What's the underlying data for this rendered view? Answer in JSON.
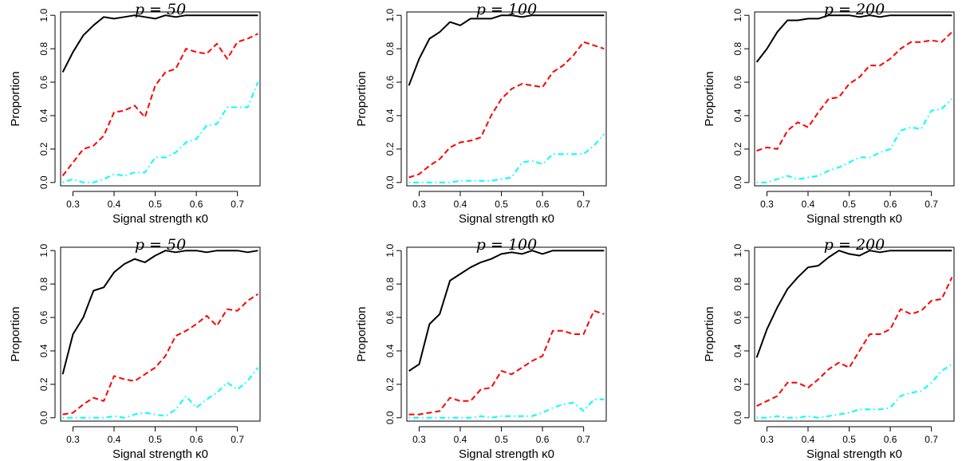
{
  "chart_data": [
    {
      "type": "line",
      "title": "p = 50",
      "xlabel": "Signal strength κ0",
      "ylabel": "Proportion",
      "x": [
        0.275,
        0.3,
        0.325,
        0.35,
        0.375,
        0.4,
        0.425,
        0.45,
        0.475,
        0.5,
        0.525,
        0.55,
        0.575,
        0.6,
        0.625,
        0.65,
        0.675,
        0.7,
        0.725,
        0.75
      ],
      "xlim": [
        0.27,
        0.755
      ],
      "ylim": [
        -0.02,
        1.02
      ],
      "xticks": [
        "0.3",
        "0.4",
        "0.5",
        "0.6",
        "0.7"
      ],
      "yticks": [
        "0.0",
        "0.2",
        "0.4",
        "0.6",
        "0.8",
        "1.0"
      ],
      "series": [
        {
          "color": "#000000",
          "dash": "solid",
          "values": [
            0.66,
            0.78,
            0.88,
            0.94,
            0.99,
            0.98,
            0.99,
            1.0,
            0.99,
            0.98,
            1.0,
            0.99,
            1.0,
            1.0,
            1.0,
            1.0,
            1.0,
            1.0,
            1.0,
            1.0
          ]
        },
        {
          "color": "#ff0000",
          "dash": "dashed",
          "values": [
            0.04,
            0.12,
            0.2,
            0.22,
            0.28,
            0.42,
            0.43,
            0.46,
            0.39,
            0.58,
            0.66,
            0.68,
            0.8,
            0.78,
            0.77,
            0.83,
            0.74,
            0.84,
            0.86,
            0.89
          ]
        },
        {
          "color": "#00ffff",
          "dash": "dotdash",
          "values": [
            0.0,
            0.02,
            0.0,
            0.0,
            0.02,
            0.05,
            0.04,
            0.06,
            0.06,
            0.15,
            0.15,
            0.18,
            0.24,
            0.26,
            0.34,
            0.35,
            0.45,
            0.45,
            0.45,
            0.6
          ]
        }
      ]
    },
    {
      "type": "line",
      "title": "p = 100",
      "xlabel": "Signal strength κ0",
      "ylabel": "Proportion",
      "x": [
        0.275,
        0.3,
        0.325,
        0.35,
        0.375,
        0.4,
        0.425,
        0.45,
        0.475,
        0.5,
        0.525,
        0.55,
        0.575,
        0.6,
        0.625,
        0.65,
        0.675,
        0.7,
        0.725,
        0.75
      ],
      "xlim": [
        0.27,
        0.755
      ],
      "ylim": [
        -0.02,
        1.02
      ],
      "xticks": [
        "0.3",
        "0.4",
        "0.5",
        "0.6",
        "0.7"
      ],
      "yticks": [
        "0.0",
        "0.2",
        "0.4",
        "0.6",
        "0.8",
        "1.0"
      ],
      "series": [
        {
          "color": "#000000",
          "dash": "solid",
          "values": [
            0.58,
            0.74,
            0.86,
            0.9,
            0.96,
            0.94,
            0.98,
            0.98,
            0.98,
            1.0,
            1.0,
            0.99,
            1.0,
            1.0,
            1.0,
            1.0,
            1.0,
            1.0,
            1.0,
            1.0
          ]
        },
        {
          "color": "#ff0000",
          "dash": "dashed",
          "values": [
            0.03,
            0.05,
            0.1,
            0.14,
            0.21,
            0.24,
            0.25,
            0.27,
            0.4,
            0.5,
            0.56,
            0.59,
            0.58,
            0.57,
            0.66,
            0.7,
            0.76,
            0.84,
            0.82,
            0.8
          ]
        },
        {
          "color": "#00ffff",
          "dash": "dotdash",
          "values": [
            0.0,
            0.0,
            0.0,
            0.0,
            0.0,
            0.01,
            0.01,
            0.01,
            0.01,
            0.02,
            0.03,
            0.12,
            0.13,
            0.11,
            0.17,
            0.17,
            0.17,
            0.17,
            0.22,
            0.29
          ]
        }
      ]
    },
    {
      "type": "line",
      "title": "p = 200",
      "xlabel": "Signal strength κ0",
      "ylabel": "Proportion",
      "x": [
        0.275,
        0.3,
        0.325,
        0.35,
        0.375,
        0.4,
        0.425,
        0.45,
        0.475,
        0.5,
        0.525,
        0.55,
        0.575,
        0.6,
        0.625,
        0.65,
        0.675,
        0.7,
        0.725,
        0.75
      ],
      "xlim": [
        0.27,
        0.755
      ],
      "ylim": [
        -0.02,
        1.02
      ],
      "xticks": [
        "0.3",
        "0.4",
        "0.5",
        "0.6",
        "0.7"
      ],
      "yticks": [
        "0.0",
        "0.2",
        "0.4",
        "0.6",
        "0.8",
        "1.0"
      ],
      "series": [
        {
          "color": "#000000",
          "dash": "solid",
          "values": [
            0.72,
            0.8,
            0.9,
            0.97,
            0.97,
            0.98,
            0.98,
            1.0,
            1.0,
            1.0,
            0.99,
            1.0,
            0.99,
            1.0,
            1.0,
            1.0,
            1.0,
            1.0,
            1.0,
            1.0
          ]
        },
        {
          "color": "#ff0000",
          "dash": "dashed",
          "values": [
            0.19,
            0.21,
            0.2,
            0.31,
            0.36,
            0.33,
            0.42,
            0.5,
            0.51,
            0.59,
            0.63,
            0.7,
            0.7,
            0.74,
            0.8,
            0.84,
            0.84,
            0.85,
            0.84,
            0.9
          ]
        },
        {
          "color": "#00ffff",
          "dash": "dotdash",
          "values": [
            0.0,
            0.0,
            0.02,
            0.04,
            0.02,
            0.03,
            0.04,
            0.07,
            0.09,
            0.12,
            0.15,
            0.15,
            0.18,
            0.2,
            0.31,
            0.33,
            0.32,
            0.43,
            0.44,
            0.5
          ]
        }
      ]
    },
    {
      "type": "line",
      "title": "p = 50",
      "xlabel": "Signal strength κ0",
      "ylabel": "Proportion",
      "x": [
        0.275,
        0.3,
        0.325,
        0.35,
        0.375,
        0.4,
        0.425,
        0.45,
        0.475,
        0.5,
        0.525,
        0.55,
        0.575,
        0.6,
        0.625,
        0.65,
        0.675,
        0.7,
        0.725,
        0.75
      ],
      "xlim": [
        0.27,
        0.755
      ],
      "ylim": [
        -0.02,
        1.02
      ],
      "xticks": [
        "0.3",
        "0.4",
        "0.5",
        "0.6",
        "0.7"
      ],
      "yticks": [
        "0.0",
        "0.2",
        "0.4",
        "0.6",
        "0.8",
        "1.0"
      ],
      "series": [
        {
          "color": "#000000",
          "dash": "solid",
          "values": [
            0.26,
            0.5,
            0.6,
            0.76,
            0.78,
            0.87,
            0.92,
            0.95,
            0.93,
            0.97,
            1.0,
            0.99,
            1.0,
            1.0,
            0.99,
            1.0,
            1.0,
            1.0,
            0.99,
            1.0
          ]
        },
        {
          "color": "#ff0000",
          "dash": "dashed",
          "values": [
            0.02,
            0.03,
            0.08,
            0.12,
            0.1,
            0.25,
            0.23,
            0.22,
            0.26,
            0.3,
            0.37,
            0.49,
            0.52,
            0.56,
            0.61,
            0.55,
            0.65,
            0.64,
            0.7,
            0.74
          ]
        },
        {
          "color": "#00ffff",
          "dash": "dotdash",
          "values": [
            0.0,
            0.0,
            0.0,
            0.0,
            0.0,
            0.01,
            0.0,
            0.02,
            0.03,
            0.02,
            0.01,
            0.05,
            0.13,
            0.06,
            0.11,
            0.15,
            0.21,
            0.17,
            0.22,
            0.3
          ]
        }
      ]
    },
    {
      "type": "line",
      "title": "p = 100",
      "xlabel": "Signal strength κ0",
      "ylabel": "Proportion",
      "x": [
        0.275,
        0.3,
        0.325,
        0.35,
        0.375,
        0.4,
        0.425,
        0.45,
        0.475,
        0.5,
        0.525,
        0.55,
        0.575,
        0.6,
        0.625,
        0.65,
        0.675,
        0.7,
        0.725,
        0.75
      ],
      "xlim": [
        0.27,
        0.755
      ],
      "ylim": [
        -0.02,
        1.02
      ],
      "xticks": [
        "0.3",
        "0.4",
        "0.5",
        "0.6",
        "0.7"
      ],
      "yticks": [
        "0.0",
        "0.2",
        "0.4",
        "0.6",
        "0.8",
        "1.0"
      ],
      "series": [
        {
          "color": "#000000",
          "dash": "solid",
          "values": [
            0.28,
            0.32,
            0.56,
            0.62,
            0.82,
            0.86,
            0.9,
            0.93,
            0.95,
            0.98,
            0.99,
            0.98,
            1.0,
            0.98,
            1.0,
            1.0,
            1.0,
            1.0,
            1.0,
            1.0
          ]
        },
        {
          "color": "#ff0000",
          "dash": "dashed",
          "values": [
            0.02,
            0.02,
            0.03,
            0.04,
            0.12,
            0.1,
            0.1,
            0.17,
            0.18,
            0.28,
            0.26,
            0.3,
            0.34,
            0.37,
            0.52,
            0.52,
            0.5,
            0.5,
            0.64,
            0.62
          ]
        },
        {
          "color": "#00ffff",
          "dash": "dotdash",
          "values": [
            0.0,
            0.0,
            0.0,
            0.0,
            0.0,
            0.0,
            0.0,
            0.01,
            0.0,
            0.01,
            0.01,
            0.01,
            0.01,
            0.03,
            0.06,
            0.08,
            0.09,
            0.04,
            0.11,
            0.11
          ]
        }
      ]
    },
    {
      "type": "line",
      "title": "p = 200",
      "xlabel": "Signal strength κ0",
      "ylabel": "Proportion",
      "x": [
        0.275,
        0.3,
        0.325,
        0.35,
        0.375,
        0.4,
        0.425,
        0.45,
        0.475,
        0.5,
        0.525,
        0.55,
        0.575,
        0.6,
        0.625,
        0.65,
        0.675,
        0.7,
        0.725,
        0.75
      ],
      "xlim": [
        0.27,
        0.755
      ],
      "ylim": [
        -0.02,
        1.02
      ],
      "xticks": [
        "0.3",
        "0.4",
        "0.5",
        "0.6",
        "0.7"
      ],
      "yticks": [
        "0.0",
        "0.2",
        "0.4",
        "0.6",
        "0.8",
        "1.0"
      ],
      "series": [
        {
          "color": "#000000",
          "dash": "solid",
          "values": [
            0.36,
            0.53,
            0.66,
            0.77,
            0.84,
            0.9,
            0.91,
            0.96,
            1.0,
            0.98,
            0.97,
            1.0,
            0.99,
            1.0,
            1.0,
            1.0,
            1.0,
            1.0,
            1.0,
            1.0
          ]
        },
        {
          "color": "#ff0000",
          "dash": "dashed",
          "values": [
            0.07,
            0.1,
            0.13,
            0.21,
            0.21,
            0.18,
            0.23,
            0.29,
            0.33,
            0.3,
            0.4,
            0.5,
            0.5,
            0.53,
            0.65,
            0.62,
            0.64,
            0.7,
            0.71,
            0.84
          ]
        },
        {
          "color": "#00ffff",
          "dash": "dotdash",
          "values": [
            0.0,
            0.0,
            0.01,
            0.0,
            0.0,
            0.01,
            0.0,
            0.01,
            0.02,
            0.03,
            0.05,
            0.05,
            0.05,
            0.06,
            0.13,
            0.15,
            0.16,
            0.21,
            0.28,
            0.32
          ]
        }
      ]
    }
  ]
}
